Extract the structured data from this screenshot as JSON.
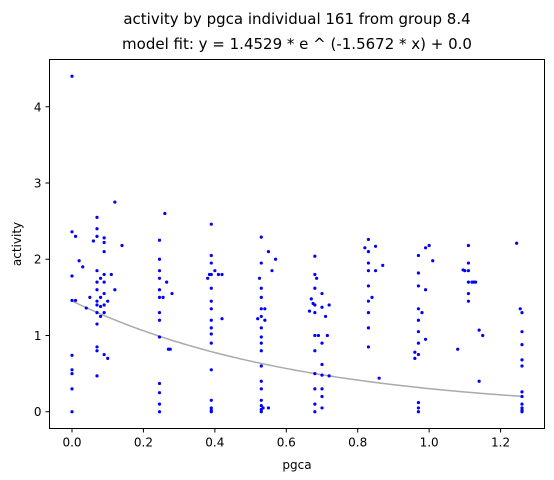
{
  "chart_data": {
    "type": "scatter",
    "title": "activity by pgca individual 161 from group 8.4",
    "subtitle": "model fit: y = 1.4529 * e ^ (-1.5672 * x) + 0.0",
    "xlabel": "pgca",
    "ylabel": "activity",
    "xlim": [
      -0.063,
      1.323
    ],
    "ylim": [
      -0.22,
      4.62
    ],
    "xticks": [
      0.0,
      0.2,
      0.4,
      0.6,
      0.8,
      1.0,
      1.2
    ],
    "xtick_labels": [
      "0.0",
      "0.2",
      "0.4",
      "0.6",
      "0.8",
      "1.0",
      "1.2"
    ],
    "yticks": [
      0,
      1,
      2,
      3,
      4
    ],
    "ytick_labels": [
      "0",
      "1",
      "2",
      "3",
      "4"
    ],
    "grid": false,
    "colors": {
      "points": "#0000ff",
      "fit": "#aaaaaa",
      "axes": "#000000"
    },
    "fit": {
      "a": 1.4529,
      "b": -1.5672,
      "c": 0.0,
      "x_range": [
        0.0,
        1.26
      ]
    },
    "points": [
      [
        0.0,
        4.4
      ],
      [
        0.0,
        2.36
      ],
      [
        0.0,
        1.78
      ],
      [
        0.0,
        1.46
      ],
      [
        0.0,
        0.74
      ],
      [
        0.0,
        0.55
      ],
      [
        0.0,
        0.5
      ],
      [
        0.0,
        0.3
      ],
      [
        0.0,
        0.0
      ],
      [
        0.01,
        1.46
      ],
      [
        0.01,
        2.3
      ],
      [
        0.02,
        1.98
      ],
      [
        0.03,
        1.9
      ],
      [
        0.04,
        1.36
      ],
      [
        0.05,
        1.5
      ],
      [
        0.06,
        2.24
      ],
      [
        0.07,
        2.55
      ],
      [
        0.07,
        2.4
      ],
      [
        0.07,
        2.3
      ],
      [
        0.07,
        1.85
      ],
      [
        0.07,
        1.7
      ],
      [
        0.07,
        1.6
      ],
      [
        0.07,
        1.45
      ],
      [
        0.07,
        1.4
      ],
      [
        0.07,
        1.3
      ],
      [
        0.07,
        1.15
      ],
      [
        0.07,
        0.85
      ],
      [
        0.07,
        0.8
      ],
      [
        0.07,
        0.47
      ],
      [
        0.08,
        1.75
      ],
      [
        0.08,
        1.5
      ],
      [
        0.08,
        1.38
      ],
      [
        0.08,
        1.25
      ],
      [
        0.09,
        2.28
      ],
      [
        0.09,
        2.22
      ],
      [
        0.09,
        2.1
      ],
      [
        0.09,
        1.8
      ],
      [
        0.09,
        1.7
      ],
      [
        0.09,
        1.55
      ],
      [
        0.09,
        1.4
      ],
      [
        0.09,
        1.3
      ],
      [
        0.09,
        0.75
      ],
      [
        0.1,
        1.45
      ],
      [
        0.1,
        0.7
      ],
      [
        0.11,
        1.8
      ],
      [
        0.12,
        2.75
      ],
      [
        0.12,
        1.6
      ],
      [
        0.14,
        2.18
      ],
      [
        0.245,
        2.25
      ],
      [
        0.245,
        2.0
      ],
      [
        0.245,
        1.85
      ],
      [
        0.245,
        1.75
      ],
      [
        0.245,
        1.6
      ],
      [
        0.245,
        1.5
      ],
      [
        0.245,
        1.3
      ],
      [
        0.245,
        1.2
      ],
      [
        0.245,
        0.98
      ],
      [
        0.245,
        0.37
      ],
      [
        0.245,
        0.25
      ],
      [
        0.245,
        0.1
      ],
      [
        0.245,
        0.0
      ],
      [
        0.255,
        1.5
      ],
      [
        0.26,
        2.6
      ],
      [
        0.265,
        1.7
      ],
      [
        0.27,
        0.82
      ],
      [
        0.275,
        0.82
      ],
      [
        0.28,
        1.55
      ],
      [
        0.38,
        1.75
      ],
      [
        0.385,
        1.8
      ],
      [
        0.39,
        2.46
      ],
      [
        0.39,
        2.05
      ],
      [
        0.39,
        1.95
      ],
      [
        0.39,
        1.8
      ],
      [
        0.39,
        1.62
      ],
      [
        0.39,
        1.45
      ],
      [
        0.39,
        1.35
      ],
      [
        0.39,
        1.2
      ],
      [
        0.39,
        1.1
      ],
      [
        0.39,
        1.02
      ],
      [
        0.39,
        0.9
      ],
      [
        0.39,
        0.55
      ],
      [
        0.39,
        0.15
      ],
      [
        0.39,
        0.05
      ],
      [
        0.39,
        0.02
      ],
      [
        0.39,
        0.0
      ],
      [
        0.4,
        1.85
      ],
      [
        0.41,
        1.8
      ],
      [
        0.42,
        1.22
      ],
      [
        0.42,
        1.8
      ],
      [
        0.52,
        1.22
      ],
      [
        0.525,
        1.75
      ],
      [
        0.53,
        2.29
      ],
      [
        0.53,
        1.95
      ],
      [
        0.53,
        1.62
      ],
      [
        0.53,
        1.5
      ],
      [
        0.53,
        1.35
      ],
      [
        0.53,
        1.25
      ],
      [
        0.53,
        1.1
      ],
      [
        0.53,
        0.98
      ],
      [
        0.53,
        0.9
      ],
      [
        0.53,
        0.8
      ],
      [
        0.53,
        0.6
      ],
      [
        0.53,
        0.4
      ],
      [
        0.53,
        0.3
      ],
      [
        0.53,
        0.15
      ],
      [
        0.53,
        0.08
      ],
      [
        0.53,
        0.03
      ],
      [
        0.53,
        0.0
      ],
      [
        0.535,
        0.05
      ],
      [
        0.54,
        1.35
      ],
      [
        0.54,
        1.2
      ],
      [
        0.55,
        2.1
      ],
      [
        0.55,
        0.05
      ],
      [
        0.56,
        1.85
      ],
      [
        0.57,
        2.0
      ],
      [
        0.665,
        1.32
      ],
      [
        0.67,
        1.48
      ],
      [
        0.675,
        1.42
      ],
      [
        0.68,
        2.04
      ],
      [
        0.68,
        1.8
      ],
      [
        0.68,
        1.62
      ],
      [
        0.68,
        1.4
      ],
      [
        0.68,
        1.3
      ],
      [
        0.68,
        1.0
      ],
      [
        0.68,
        0.8
      ],
      [
        0.68,
        0.5
      ],
      [
        0.68,
        0.3
      ],
      [
        0.68,
        0.1
      ],
      [
        0.68,
        0.0
      ],
      [
        0.685,
        1.75
      ],
      [
        0.69,
        1.0
      ],
      [
        0.7,
        1.55
      ],
      [
        0.7,
        1.37
      ],
      [
        0.7,
        0.9
      ],
      [
        0.7,
        0.62
      ],
      [
        0.7,
        0.48
      ],
      [
        0.7,
        0.3
      ],
      [
        0.7,
        0.2
      ],
      [
        0.7,
        0.05
      ],
      [
        0.71,
        1.25
      ],
      [
        0.715,
        1.0
      ],
      [
        0.72,
        1.4
      ],
      [
        0.72,
        0.47
      ],
      [
        0.82,
        2.15
      ],
      [
        0.83,
        2.26
      ],
      [
        0.83,
        2.1
      ],
      [
        0.83,
        1.95
      ],
      [
        0.83,
        1.85
      ],
      [
        0.83,
        1.65
      ],
      [
        0.83,
        1.45
      ],
      [
        0.83,
        1.3
      ],
      [
        0.83,
        1.1
      ],
      [
        0.83,
        0.85
      ],
      [
        0.84,
        1.5
      ],
      [
        0.85,
        2.17
      ],
      [
        0.85,
        1.85
      ],
      [
        0.86,
        0.44
      ],
      [
        0.87,
        1.92
      ],
      [
        0.96,
        0.78
      ],
      [
        0.96,
        0.7
      ],
      [
        0.97,
        2.05
      ],
      [
        0.97,
        1.82
      ],
      [
        0.97,
        1.65
      ],
      [
        0.97,
        1.35
      ],
      [
        0.97,
        1.2
      ],
      [
        0.97,
        1.05
      ],
      [
        0.97,
        0.9
      ],
      [
        0.97,
        0.75
      ],
      [
        0.97,
        0.12
      ],
      [
        0.97,
        0.05
      ],
      [
        0.97,
        0.0
      ],
      [
        0.98,
        1.3
      ],
      [
        0.99,
        2.15
      ],
      [
        0.99,
        1.6
      ],
      [
        0.99,
        0.95
      ],
      [
        1.0,
        2.18
      ],
      [
        1.01,
        1.98
      ],
      [
        1.08,
        0.82
      ],
      [
        1.095,
        1.86
      ],
      [
        1.1,
        1.85
      ],
      [
        1.11,
        2.18
      ],
      [
        1.11,
        1.95
      ],
      [
        1.11,
        1.85
      ],
      [
        1.11,
        1.7
      ],
      [
        1.11,
        1.55
      ],
      [
        1.11,
        1.45
      ],
      [
        1.12,
        1.7
      ],
      [
        1.125,
        1.7
      ],
      [
        1.13,
        1.7
      ],
      [
        1.14,
        1.07
      ],
      [
        1.14,
        0.4
      ],
      [
        1.15,
        1.0
      ],
      [
        1.245,
        2.21
      ],
      [
        1.255,
        1.35
      ],
      [
        1.26,
        1.3
      ],
      [
        1.26,
        1.05
      ],
      [
        1.26,
        0.88
      ],
      [
        1.26,
        0.68
      ],
      [
        1.26,
        0.6
      ],
      [
        1.26,
        0.26
      ],
      [
        1.26,
        0.2
      ],
      [
        1.26,
        0.1
      ],
      [
        1.26,
        0.05
      ],
      [
        1.26,
        0.02
      ],
      [
        1.26,
        0.0
      ]
    ]
  }
}
